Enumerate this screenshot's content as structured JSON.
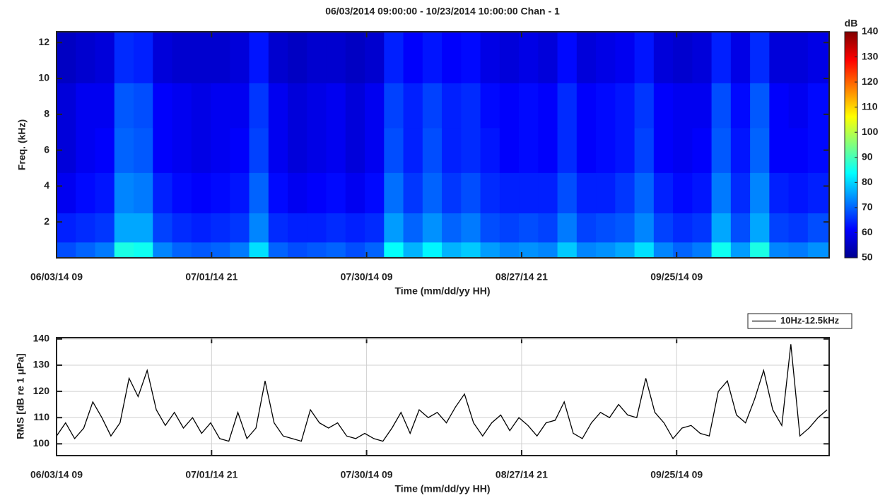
{
  "chart_data": [
    {
      "type": "heatmap",
      "title": "06/03/2014 09:00:00 - 10/23/2014 10:00:00 Chan - 1",
      "x_label": "Time (mm/dd/yy HH)",
      "y_label": "Freq. (kHz)",
      "x": [
        42.5,
        127.5,
        212.5,
        297.5,
        382.5,
        467.5,
        552.5,
        637.5,
        722.5,
        807.5,
        892.5,
        977.5,
        1062.5,
        1147.5,
        1232.5,
        1317.5,
        1402.5,
        1487.5,
        1572.5,
        1657.5,
        1742.5,
        1827.5,
        1912.5,
        1997.5,
        2082.5,
        2167.5,
        2252.5,
        2337.5,
        2422.5,
        2507.5,
        2592.5,
        2677.5,
        2762.5,
        2847.5,
        2932.5,
        3017.5,
        3102.5,
        3187.5,
        3272.5,
        3357.5
      ],
      "y": [
        0.25,
        1.5,
        3.5,
        6,
        8.5,
        11
      ],
      "z": [
        [
          68,
          70,
          72,
          86,
          85,
          73,
          70,
          69,
          70,
          72,
          81,
          70,
          68,
          69,
          70,
          68,
          70,
          84,
          77,
          83,
          77,
          79,
          75,
          73,
          74,
          73,
          79,
          73,
          74,
          76,
          81,
          73,
          70,
          72,
          85,
          75,
          86,
          73,
          72,
          74
        ],
        [
          64,
          65,
          66,
          76,
          76,
          67,
          65,
          64,
          65,
          66,
          73,
          65,
          64,
          64,
          65,
          64,
          65,
          75,
          70,
          74,
          70,
          72,
          68,
          67,
          68,
          67,
          72,
          67,
          68,
          69,
          73,
          67,
          65,
          66,
          76,
          68,
          76,
          67,
          66,
          68
        ],
        [
          60,
          62,
          63,
          73,
          72,
          64,
          62,
          61,
          62,
          63,
          70,
          62,
          60,
          61,
          62,
          60,
          62,
          71,
          66,
          70,
          66,
          68,
          65,
          64,
          64,
          64,
          68,
          64,
          64,
          66,
          70,
          64,
          62,
          63,
          72,
          65,
          73,
          64,
          63,
          64
        ],
        [
          58,
          60,
          61,
          70,
          69,
          61,
          60,
          59,
          60,
          61,
          67,
          60,
          58,
          59,
          60,
          58,
          60,
          68,
          64,
          68,
          64,
          65,
          63,
          61,
          62,
          61,
          65,
          61,
          62,
          63,
          67,
          61,
          60,
          61,
          69,
          63,
          70,
          61,
          61,
          62
        ],
        [
          58,
          60,
          60,
          69,
          68,
          61,
          60,
          59,
          60,
          60,
          66,
          60,
          58,
          59,
          60,
          58,
          60,
          67,
          64,
          67,
          64,
          65,
          62,
          61,
          62,
          61,
          65,
          61,
          62,
          63,
          66,
          61,
          60,
          60,
          68,
          62,
          69,
          61,
          60,
          62
        ],
        [
          56,
          57,
          58,
          65,
          64,
          58,
          57,
          57,
          57,
          58,
          63,
          57,
          56,
          57,
          57,
          56,
          57,
          64,
          61,
          63,
          61,
          62,
          59,
          58,
          59,
          58,
          62,
          58,
          59,
          60,
          63,
          58,
          57,
          58,
          64,
          59,
          65,
          58,
          58,
          59
        ]
      ],
      "xlim": [
        0,
        3409
      ],
      "xticks": [
        {
          "value": 0,
          "label": "06/03/14 09"
        },
        {
          "value": 684,
          "label": "07/01/14 21"
        },
        {
          "value": 1368,
          "label": "07/30/14 09"
        },
        {
          "value": 2052,
          "label": "08/27/14 21"
        },
        {
          "value": 2736,
          "label": "09/25/14 09"
        }
      ],
      "ylim": [
        0,
        12.6
      ],
      "yticks": [
        2,
        4,
        6,
        8,
        10,
        12
      ],
      "colormap": "jet",
      "colorbar_label": "dB",
      "zlim": [
        50,
        140
      ],
      "zticks": [
        50,
        60,
        70,
        80,
        90,
        100,
        110,
        120,
        130,
        140
      ]
    },
    {
      "type": "line",
      "x_label": "Time (mm/dd/yy HH)",
      "y_label": "RMS [dB re 1 μPa]",
      "x": [
        0,
        40,
        80,
        120,
        160,
        200,
        240,
        280,
        320,
        360,
        400,
        440,
        480,
        520,
        560,
        600,
        640,
        680,
        720,
        760,
        800,
        840,
        880,
        920,
        960,
        1000,
        1040,
        1080,
        1120,
        1160,
        1200,
        1240,
        1280,
        1320,
        1360,
        1400,
        1440,
        1480,
        1520,
        1560,
        1600,
        1640,
        1680,
        1720,
        1760,
        1800,
        1840,
        1880,
        1920,
        1960,
        2000,
        2040,
        2080,
        2120,
        2160,
        2200,
        2240,
        2280,
        2320,
        2360,
        2400,
        2440,
        2480,
        2520,
        2560,
        2600,
        2640,
        2680,
        2720,
        2760,
        2800,
        2840,
        2880,
        2920,
        2960,
        3000,
        3040,
        3080,
        3120,
        3160,
        3200,
        3240,
        3280,
        3320,
        3360,
        3400
      ],
      "series": [
        {
          "name": "10Hz-12.5kHz",
          "color": "#000000",
          "values": [
            103,
            108,
            102,
            106,
            116,
            110,
            103,
            108,
            125,
            118,
            128,
            113,
            107,
            112,
            106,
            110,
            104,
            108,
            102,
            101,
            112,
            102,
            106,
            124,
            108,
            103,
            102,
            101,
            113,
            108,
            106,
            108,
            103,
            102,
            104,
            102,
            101,
            106,
            112,
            104,
            113,
            110,
            112,
            108,
            114,
            119,
            108,
            103,
            108,
            111,
            105,
            110,
            107,
            103,
            108,
            109,
            116,
            104,
            102,
            108,
            112,
            110,
            115,
            111,
            110,
            125,
            112,
            108,
            102,
            106,
            107,
            104,
            103,
            120,
            124,
            111,
            108,
            117,
            128,
            113,
            107,
            138,
            103,
            106,
            110,
            113
          ]
        }
      ],
      "xlim": [
        0,
        3409
      ],
      "xticks": [
        {
          "value": 0,
          "label": "06/03/14 09"
        },
        {
          "value": 684,
          "label": "07/01/14 21"
        },
        {
          "value": 1368,
          "label": "07/30/14 09"
        },
        {
          "value": 2052,
          "label": "08/27/14 21"
        },
        {
          "value": 2736,
          "label": "09/25/14 09"
        }
      ],
      "ylim": [
        95.5,
        140.5
      ],
      "yticks": [
        100,
        110,
        120,
        130,
        140
      ],
      "grid": true,
      "legend": "top-right"
    }
  ]
}
